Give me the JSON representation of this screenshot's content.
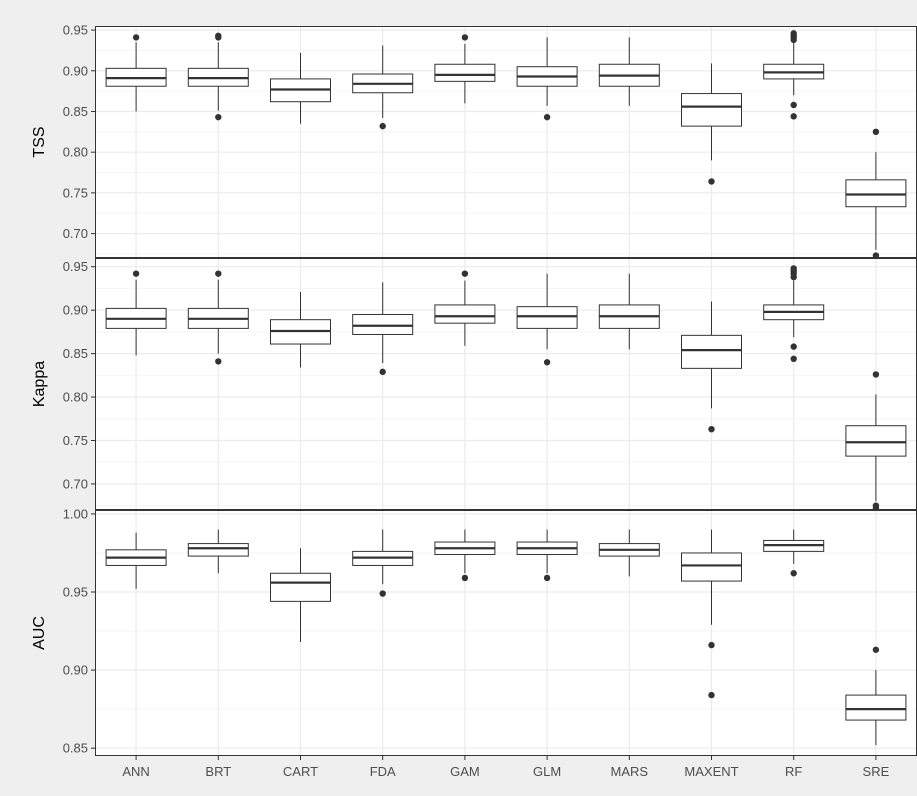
{
  "chart_data": {
    "type": "boxplot",
    "categories": [
      "ANN",
      "BRT",
      "CART",
      "FDA",
      "GAM",
      "GLM",
      "MARS",
      "MAXENT",
      "RF",
      "SRE"
    ],
    "grid": true,
    "panels": [
      {
        "ylabel": "TSS",
        "ylim": [
          0.67,
          0.955
        ],
        "yticks": [
          "0.70",
          "0.75",
          "0.80",
          "0.85",
          "0.90",
          "0.95"
        ],
        "boxes": [
          {
            "category": "ANN",
            "whisker_low": 0.85,
            "q1": 0.881,
            "median": 0.891,
            "q3": 0.903,
            "whisker_high": 0.935,
            "outliers": [
              0.941
            ]
          },
          {
            "category": "BRT",
            "whisker_low": 0.851,
            "q1": 0.881,
            "median": 0.891,
            "q3": 0.903,
            "whisker_high": 0.935,
            "outliers": [
              0.843,
              0.941,
              0.943
            ]
          },
          {
            "category": "CART",
            "whisker_low": 0.835,
            "q1": 0.862,
            "median": 0.877,
            "q3": 0.89,
            "whisker_high": 0.922,
            "outliers": []
          },
          {
            "category": "FDA",
            "whisker_low": 0.842,
            "q1": 0.873,
            "median": 0.884,
            "q3": 0.896,
            "whisker_high": 0.931,
            "outliers": [
              0.832
            ]
          },
          {
            "category": "GAM",
            "whisker_low": 0.86,
            "q1": 0.887,
            "median": 0.895,
            "q3": 0.908,
            "whisker_high": 0.933,
            "outliers": [
              0.941
            ]
          },
          {
            "category": "GLM",
            "whisker_low": 0.857,
            "q1": 0.881,
            "median": 0.893,
            "q3": 0.905,
            "whisker_high": 0.941,
            "outliers": [
              0.843
            ]
          },
          {
            "category": "MARS",
            "whisker_low": 0.857,
            "q1": 0.881,
            "median": 0.894,
            "q3": 0.908,
            "whisker_high": 0.941,
            "outliers": []
          },
          {
            "category": "MAXENT",
            "whisker_low": 0.79,
            "q1": 0.832,
            "median": 0.856,
            "q3": 0.872,
            "whisker_high": 0.909,
            "outliers": [
              0.764
            ]
          },
          {
            "category": "RF",
            "whisker_low": 0.87,
            "q1": 0.89,
            "median": 0.898,
            "q3": 0.908,
            "whisker_high": 0.935,
            "outliers": [
              0.844,
              0.858,
              0.938,
              0.941,
              0.943,
              0.946
            ]
          },
          {
            "category": "SRE",
            "whisker_low": 0.68,
            "q1": 0.733,
            "median": 0.748,
            "q3": 0.766,
            "whisker_high": 0.8,
            "outliers": [
              0.67,
              0.673,
              0.825
            ]
          }
        ]
      },
      {
        "ylabel": "Kappa",
        "ylim": [
          0.67,
          0.96
        ],
        "yticks": [
          "0.70",
          "0.75",
          "0.80",
          "0.85",
          "0.90",
          "0.95"
        ],
        "boxes": [
          {
            "category": "ANN",
            "whisker_low": 0.848,
            "q1": 0.879,
            "median": 0.89,
            "q3": 0.902,
            "whisker_high": 0.935,
            "outliers": [
              0.942
            ]
          },
          {
            "category": "BRT",
            "whisker_low": 0.85,
            "q1": 0.879,
            "median": 0.89,
            "q3": 0.902,
            "whisker_high": 0.935,
            "outliers": [
              0.841,
              0.942
            ]
          },
          {
            "category": "CART",
            "whisker_low": 0.834,
            "q1": 0.861,
            "median": 0.876,
            "q3": 0.889,
            "whisker_high": 0.921,
            "outliers": []
          },
          {
            "category": "FDA",
            "whisker_low": 0.839,
            "q1": 0.872,
            "median": 0.882,
            "q3": 0.895,
            "whisker_high": 0.932,
            "outliers": [
              0.829
            ]
          },
          {
            "category": "GAM",
            "whisker_low": 0.859,
            "q1": 0.885,
            "median": 0.893,
            "q3": 0.906,
            "whisker_high": 0.934,
            "outliers": [
              0.942
            ]
          },
          {
            "category": "GLM",
            "whisker_low": 0.855,
            "q1": 0.879,
            "median": 0.893,
            "q3": 0.904,
            "whisker_high": 0.942,
            "outliers": [
              0.84
            ]
          },
          {
            "category": "MARS",
            "whisker_low": 0.855,
            "q1": 0.879,
            "median": 0.893,
            "q3": 0.906,
            "whisker_high": 0.942,
            "outliers": []
          },
          {
            "category": "MAXENT",
            "whisker_low": 0.787,
            "q1": 0.833,
            "median": 0.854,
            "q3": 0.871,
            "whisker_high": 0.91,
            "outliers": [
              0.763
            ]
          },
          {
            "category": "RF",
            "whisker_low": 0.869,
            "q1": 0.889,
            "median": 0.898,
            "q3": 0.906,
            "whisker_high": 0.934,
            "outliers": [
              0.844,
              0.858,
              0.938,
              0.942,
              0.945,
              0.948
            ]
          },
          {
            "category": "SRE",
            "whisker_low": 0.68,
            "q1": 0.732,
            "median": 0.748,
            "q3": 0.767,
            "whisker_high": 0.803,
            "outliers": [
              0.672,
              0.675,
              0.826
            ]
          }
        ]
      },
      {
        "ylabel": "AUC",
        "ylim": [
          0.845,
          1.0025
        ],
        "yticks": [
          "0.85",
          "0.90",
          "0.95",
          "1.00"
        ],
        "boxes": [
          {
            "category": "ANN",
            "whisker_low": 0.952,
            "q1": 0.967,
            "median": 0.972,
            "q3": 0.977,
            "whisker_high": 0.988,
            "outliers": []
          },
          {
            "category": "BRT",
            "whisker_low": 0.962,
            "q1": 0.973,
            "median": 0.978,
            "q3": 0.981,
            "whisker_high": 0.99,
            "outliers": []
          },
          {
            "category": "CART",
            "whisker_low": 0.918,
            "q1": 0.944,
            "median": 0.956,
            "q3": 0.962,
            "whisker_high": 0.978,
            "outliers": []
          },
          {
            "category": "FDA",
            "whisker_low": 0.955,
            "q1": 0.967,
            "median": 0.972,
            "q3": 0.976,
            "whisker_high": 0.99,
            "outliers": [
              0.949
            ]
          },
          {
            "category": "GAM",
            "whisker_low": 0.962,
            "q1": 0.974,
            "median": 0.978,
            "q3": 0.982,
            "whisker_high": 0.99,
            "outliers": [
              0.959
            ]
          },
          {
            "category": "GLM",
            "whisker_low": 0.962,
            "q1": 0.974,
            "median": 0.978,
            "q3": 0.982,
            "whisker_high": 0.99,
            "outliers": [
              0.959
            ]
          },
          {
            "category": "MARS",
            "whisker_low": 0.96,
            "q1": 0.973,
            "median": 0.977,
            "q3": 0.981,
            "whisker_high": 0.99,
            "outliers": []
          },
          {
            "category": "MAXENT",
            "whisker_low": 0.929,
            "q1": 0.957,
            "median": 0.967,
            "q3": 0.975,
            "whisker_high": 0.99,
            "outliers": [
              0.884,
              0.916
            ]
          },
          {
            "category": "RF",
            "whisker_low": 0.968,
            "q1": 0.976,
            "median": 0.98,
            "q3": 0.983,
            "whisker_high": 0.99,
            "outliers": [
              0.962
            ]
          },
          {
            "category": "SRE",
            "whisker_low": 0.852,
            "q1": 0.868,
            "median": 0.875,
            "q3": 0.884,
            "whisker_high": 0.9,
            "outliers": [
              0.913
            ]
          }
        ]
      }
    ]
  },
  "colors": {
    "page_background": "#efefef",
    "panel_background": "#ffffff",
    "major_grid": "#ebebeb",
    "minor_grid": "#f5f5f5",
    "box_stroke": "#333333",
    "outlier_fill": "#333333",
    "frame": "#333333",
    "tick_label": "#4d4d4d"
  }
}
